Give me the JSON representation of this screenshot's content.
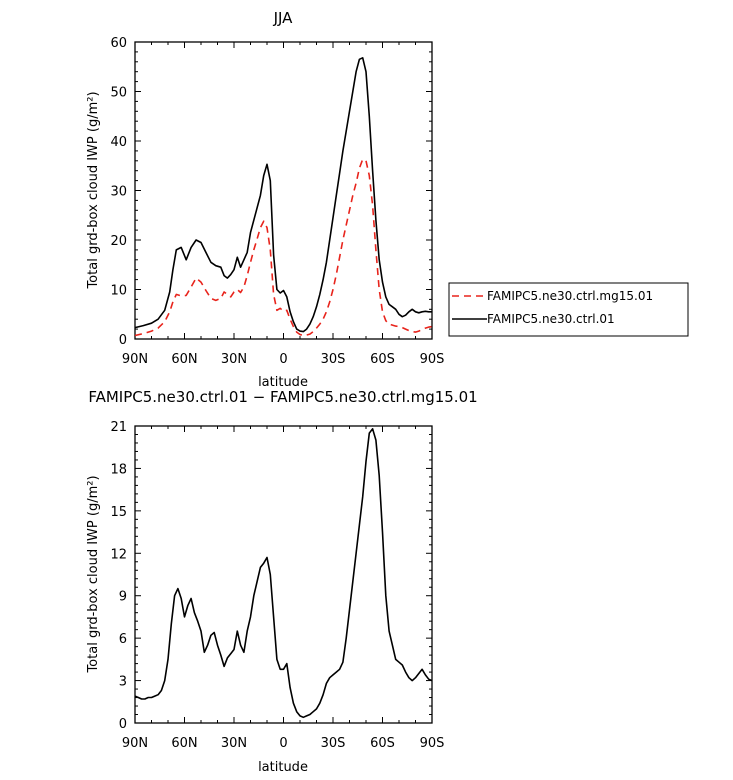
{
  "chart_data": [
    {
      "type": "line",
      "title": "JJA",
      "xlabel": "latitude",
      "ylabel": "Total grd-box cloud IWP (g/m²)",
      "xlim": [
        90,
        -90
      ],
      "ylim": [
        0,
        60
      ],
      "x_tick_values": [
        90,
        60,
        30,
        0,
        -30,
        -60,
        -90
      ],
      "x_tick_labels": [
        "90N",
        "60N",
        "30N",
        "0",
        "30S",
        "60S",
        "90S"
      ],
      "y_tick_values": [
        0,
        10,
        20,
        30,
        40,
        50,
        60
      ],
      "y_tick_labels": [
        "0",
        "10",
        "20",
        "30",
        "40",
        "50",
        "60"
      ],
      "legend": {
        "placement": "right"
      },
      "series": [
        {
          "name": "FAMIPC5.ne30.ctrl.mg15.01",
          "color": "#e8241c",
          "dash": "dashed",
          "x": [
            90,
            85,
            80,
            76,
            72,
            69,
            67,
            65,
            62,
            59,
            56,
            53,
            50,
            47,
            44,
            41,
            38,
            36,
            34,
            32,
            30,
            28,
            26,
            24,
            22,
            20,
            18,
            16,
            14,
            12,
            10,
            8,
            6,
            4,
            2,
            0,
            -2,
            -4,
            -6,
            -8,
            -10,
            -12,
            -14,
            -16,
            -18,
            -20,
            -22,
            -24,
            -26,
            -28,
            -30,
            -32,
            -34,
            -36,
            -38,
            -40,
            -42,
            -44,
            -46,
            -48,
            -50,
            -52,
            -54,
            -56,
            -58,
            -60,
            -62,
            -64,
            -66,
            -68,
            -70,
            -72,
            -74,
            -76,
            -78,
            -80,
            -82,
            -84,
            -86,
            -88,
            -90
          ],
          "y": [
            0.7,
            1.1,
            1.6,
            2.2,
            3.5,
            5.5,
            7.5,
            9.0,
            8.7,
            8.8,
            10.5,
            12.3,
            11.5,
            9.8,
            8.2,
            7.8,
            8.2,
            9.5,
            9.0,
            8.5,
            9.5,
            10.0,
            9.4,
            10.5,
            12.8,
            15.5,
            18.0,
            20.2,
            22.5,
            23.8,
            22.5,
            18.0,
            9.0,
            5.8,
            6.2,
            5.6,
            5.8,
            4.0,
            2.5,
            1.4,
            0.9,
            0.7,
            0.8,
            1.0,
            1.5,
            2.2,
            3.0,
            4.0,
            5.5,
            7.5,
            10.0,
            13.0,
            16.5,
            20.0,
            23.0,
            26.0,
            29.0,
            31.5,
            34.5,
            36.3,
            36.0,
            33.0,
            27.0,
            18.0,
            10.0,
            5.5,
            3.7,
            3.0,
            2.8,
            2.6,
            2.5,
            2.3,
            2.0,
            1.7,
            1.5,
            1.4,
            1.6,
            1.9,
            2.2,
            2.4,
            2.5
          ]
        },
        {
          "name": "FAMIPC5.ne30.ctrl.01",
          "color": "#000000",
          "dash": "solid",
          "x": [
            90,
            85,
            80,
            76,
            72,
            69,
            67,
            65,
            62,
            59,
            56,
            53,
            50,
            47,
            44,
            41,
            38,
            36,
            34,
            32,
            30,
            28,
            26,
            24,
            22,
            20,
            18,
            16,
            14,
            12,
            10,
            8,
            6,
            4,
            2,
            0,
            -2,
            -4,
            -6,
            -8,
            -10,
            -12,
            -14,
            -16,
            -18,
            -20,
            -22,
            -24,
            -26,
            -28,
            -30,
            -32,
            -34,
            -36,
            -38,
            -40,
            -42,
            -44,
            -46,
            -48,
            -50,
            -52,
            -54,
            -56,
            -58,
            -60,
            -62,
            -64,
            -66,
            -68,
            -70,
            -72,
            -74,
            -76,
            -78,
            -80,
            -82,
            -84,
            -86,
            -88,
            -90
          ],
          "y": [
            2.3,
            2.7,
            3.2,
            4.0,
            5.8,
            9.5,
            14.0,
            18.0,
            18.5,
            16.0,
            18.5,
            20.0,
            19.5,
            17.5,
            15.5,
            14.8,
            14.5,
            12.8,
            12.3,
            13.0,
            14.0,
            16.5,
            14.5,
            16.0,
            17.5,
            21.5,
            24.0,
            26.5,
            29.0,
            33.0,
            35.3,
            32.0,
            17.0,
            10.0,
            9.3,
            9.8,
            8.5,
            5.5,
            3.5,
            2.0,
            1.6,
            1.5,
            2.0,
            3.0,
            4.5,
            6.5,
            9.0,
            12.0,
            15.5,
            20.0,
            24.5,
            29.0,
            33.5,
            38.0,
            42.0,
            46.0,
            50.0,
            54.0,
            56.5,
            56.8,
            54.0,
            45.0,
            34.0,
            24.0,
            16.0,
            11.5,
            8.5,
            7.0,
            6.5,
            6.0,
            5.0,
            4.5,
            4.8,
            5.5,
            6.0,
            5.5,
            5.3,
            5.5,
            5.6,
            5.5,
            5.5
          ]
        }
      ]
    },
    {
      "type": "line",
      "title": "FAMIPC5.ne30.ctrl.01 − FAMIPC5.ne30.ctrl.mg15.01",
      "xlabel": "latitude",
      "ylabel": "Total grd-box cloud IWP (g/m²)",
      "xlim": [
        90,
        -90
      ],
      "ylim": [
        0,
        21
      ],
      "x_tick_values": [
        90,
        60,
        30,
        0,
        -30,
        -60,
        -90
      ],
      "x_tick_labels": [
        "90N",
        "60N",
        "30N",
        "0",
        "30S",
        "60S",
        "90S"
      ],
      "y_tick_values": [
        0,
        3,
        6,
        9,
        12,
        15,
        18,
        21
      ],
      "y_tick_labels": [
        "0",
        "3",
        "6",
        "9",
        "12",
        "15",
        "18",
        "21"
      ],
      "series": [
        {
          "color": "#000000",
          "dash": "solid",
          "x": [
            90,
            88,
            86,
            84,
            82,
            80,
            78,
            76,
            74,
            72,
            70,
            68,
            66,
            64,
            62,
            60,
            58,
            56,
            54,
            52,
            50,
            48,
            46,
            44,
            42,
            40,
            38,
            36,
            34,
            32,
            30,
            28,
            26,
            24,
            22,
            20,
            18,
            16,
            14,
            12,
            10,
            8,
            6,
            4,
            2,
            0,
            -2,
            -4,
            -6,
            -8,
            -10,
            -12,
            -14,
            -16,
            -18,
            -20,
            -22,
            -24,
            -26,
            -28,
            -30,
            -32,
            -34,
            -36,
            -38,
            -40,
            -42,
            -44,
            -46,
            -48,
            -50,
            -52,
            -54,
            -56,
            -58,
            -60,
            -62,
            -64,
            -66,
            -68,
            -70,
            -72,
            -74,
            -76,
            -78,
            -80,
            -82,
            -84,
            -86,
            -88,
            -90
          ],
          "y": [
            1.9,
            1.8,
            1.7,
            1.7,
            1.8,
            1.8,
            1.9,
            2.0,
            2.3,
            3.0,
            4.5,
            7.0,
            9.0,
            9.5,
            8.8,
            7.5,
            8.3,
            8.8,
            7.8,
            7.2,
            6.5,
            5.0,
            5.5,
            6.2,
            6.4,
            5.5,
            4.8,
            4.0,
            4.6,
            4.9,
            5.2,
            6.5,
            5.5,
            5.0,
            6.5,
            7.5,
            9.0,
            10.0,
            11.0,
            11.3,
            11.7,
            10.5,
            7.5,
            4.5,
            3.8,
            3.8,
            4.2,
            2.5,
            1.4,
            0.8,
            0.5,
            0.4,
            0.5,
            0.6,
            0.8,
            1.0,
            1.4,
            2.0,
            2.8,
            3.2,
            3.4,
            3.6,
            3.8,
            4.3,
            6.0,
            8.0,
            10.0,
            12.0,
            14.0,
            16.0,
            18.5,
            20.5,
            20.8,
            20.0,
            17.5,
            13.5,
            9.0,
            6.5,
            5.5,
            4.5,
            4.3,
            4.1,
            3.6,
            3.2,
            3.0,
            3.2,
            3.5,
            3.8,
            3.4,
            3.1,
            3.0
          ]
        }
      ]
    }
  ]
}
